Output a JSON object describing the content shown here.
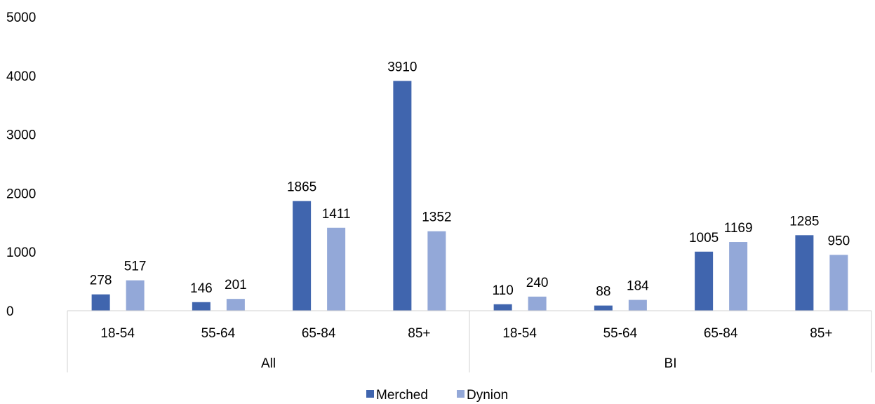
{
  "chart_data": {
    "type": "bar",
    "groups": [
      {
        "label": "All",
        "categories": [
          "18-54",
          "55-64",
          "65-84",
          "85+"
        ]
      },
      {
        "label": "BI",
        "categories": [
          "18-54",
          "55-64",
          "65-84",
          "85+"
        ]
      }
    ],
    "series": [
      {
        "name": "Merched",
        "color": "#4065AE",
        "values": [
          278,
          146,
          1865,
          3910,
          110,
          88,
          1005,
          1285
        ]
      },
      {
        "name": "Dynion",
        "color": "#93A8D8",
        "values": [
          517,
          201,
          1411,
          1352,
          240,
          184,
          1169,
          950
        ]
      }
    ],
    "y_ticks": [
      "0",
      "1000",
      "2000",
      "3000",
      "4000",
      "5000"
    ],
    "ylim": [
      0,
      5000
    ],
    "grid": false,
    "legend_position": "bottom"
  }
}
